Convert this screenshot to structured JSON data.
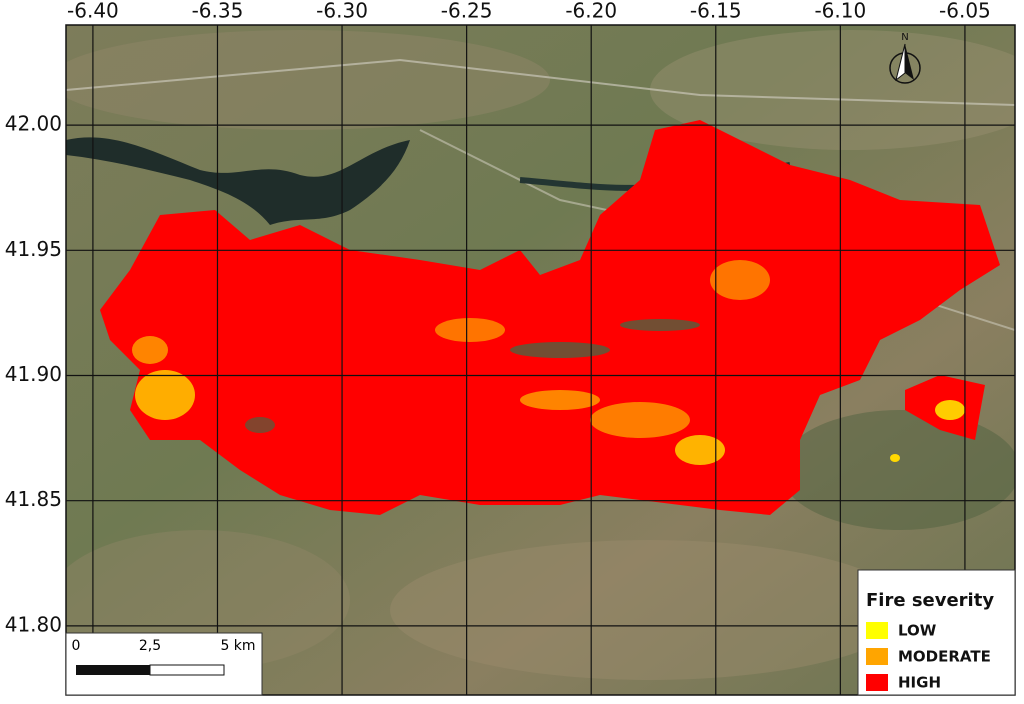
{
  "map": {
    "lon_lim": [
      -6.4108,
      -6.0299
    ],
    "lat_lim": [
      41.7724,
      42.04
    ],
    "lon_ticks": [
      {
        "value": -6.4,
        "label": "-6.40"
      },
      {
        "value": -6.35,
        "label": "-6.35"
      },
      {
        "value": -6.3,
        "label": "-6.30"
      },
      {
        "value": -6.25,
        "label": "-6.25"
      },
      {
        "value": -6.2,
        "label": "-6.20"
      },
      {
        "value": -6.15,
        "label": "-6.15"
      },
      {
        "value": -6.1,
        "label": "-6.10"
      },
      {
        "value": -6.05,
        "label": "-6.05"
      }
    ],
    "lat_ticks": [
      {
        "value": 42,
        "label": "42.00"
      },
      {
        "value": 41.95,
        "label": "41.95"
      },
      {
        "value": 41.9,
        "label": "41.90"
      },
      {
        "value": 41.85,
        "label": "41.85"
      },
      {
        "value": 41.8,
        "label": "41.80"
      }
    ],
    "legend": {
      "title": "Fire severity",
      "items": [
        {
          "label": "LOW",
          "color": "#ffff00"
        },
        {
          "label": "MODERATE",
          "color": "#ffa500"
        },
        {
          "label": "HIGH",
          "color": "#ff0000"
        }
      ]
    },
    "scale_bar": {
      "labels": [
        "0",
        "2,5",
        "5 km"
      ]
    },
    "north_arrow": {
      "label": "N"
    }
  }
}
